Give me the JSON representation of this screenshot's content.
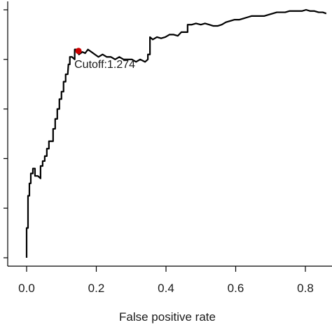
{
  "chart_data": {
    "type": "line",
    "title": "",
    "xlabel": "False positive rate",
    "ylabel": "",
    "xlim": [
      0,
      0.86
    ],
    "ylim": [
      0,
      1
    ],
    "grid": false,
    "x_ticks": [
      0.0,
      0.2,
      0.4,
      0.6,
      0.8
    ],
    "x_tick_labels": [
      "0.0",
      "0.2",
      "0.4",
      "0.6",
      "0.8"
    ],
    "y_ticks": [
      0.0,
      0.2,
      0.4,
      0.6,
      0.8,
      1.0
    ],
    "y_tick_labels": [
      "",
      "",
      "",
      "",
      "",
      ""
    ],
    "series": [
      {
        "color": "#000000",
        "points": [
          [
            0.0,
            0.0
          ],
          [
            0.0,
            0.12
          ],
          [
            0.004,
            0.12
          ],
          [
            0.004,
            0.25
          ],
          [
            0.008,
            0.25
          ],
          [
            0.008,
            0.3
          ],
          [
            0.012,
            0.3
          ],
          [
            0.012,
            0.34
          ],
          [
            0.018,
            0.34
          ],
          [
            0.018,
            0.36
          ],
          [
            0.024,
            0.36
          ],
          [
            0.024,
            0.33
          ],
          [
            0.032,
            0.33
          ],
          [
            0.04,
            0.32
          ],
          [
            0.04,
            0.37
          ],
          [
            0.046,
            0.37
          ],
          [
            0.046,
            0.39
          ],
          [
            0.052,
            0.39
          ],
          [
            0.052,
            0.41
          ],
          [
            0.058,
            0.41
          ],
          [
            0.058,
            0.44
          ],
          [
            0.064,
            0.44
          ],
          [
            0.064,
            0.47
          ],
          [
            0.07,
            0.47
          ],
          [
            0.076,
            0.47
          ],
          [
            0.076,
            0.52
          ],
          [
            0.082,
            0.52
          ],
          [
            0.082,
            0.56
          ],
          [
            0.088,
            0.56
          ],
          [
            0.088,
            0.6
          ],
          [
            0.094,
            0.6
          ],
          [
            0.094,
            0.64
          ],
          [
            0.1,
            0.64
          ],
          [
            0.1,
            0.67
          ],
          [
            0.106,
            0.67
          ],
          [
            0.106,
            0.71
          ],
          [
            0.112,
            0.71
          ],
          [
            0.112,
            0.74
          ],
          [
            0.118,
            0.74
          ],
          [
            0.12,
            0.78
          ],
          [
            0.124,
            0.78
          ],
          [
            0.124,
            0.81
          ],
          [
            0.13,
            0.81
          ],
          [
            0.138,
            0.8
          ],
          [
            0.138,
            0.84
          ],
          [
            0.146,
            0.84
          ],
          [
            0.15,
            0.82
          ],
          [
            0.16,
            0.83
          ],
          [
            0.168,
            0.825
          ],
          [
            0.176,
            0.84
          ],
          [
            0.186,
            0.83
          ],
          [
            0.196,
            0.82
          ],
          [
            0.206,
            0.81
          ],
          [
            0.218,
            0.82
          ],
          [
            0.23,
            0.81
          ],
          [
            0.242,
            0.81
          ],
          [
            0.254,
            0.8
          ],
          [
            0.266,
            0.81
          ],
          [
            0.278,
            0.8
          ],
          [
            0.29,
            0.8
          ],
          [
            0.302,
            0.8
          ],
          [
            0.314,
            0.79
          ],
          [
            0.326,
            0.8
          ],
          [
            0.34,
            0.79
          ],
          [
            0.348,
            0.8
          ],
          [
            0.348,
            0.82
          ],
          [
            0.354,
            0.82
          ],
          [
            0.354,
            0.89
          ],
          [
            0.362,
            0.88
          ],
          [
            0.374,
            0.89
          ],
          [
            0.386,
            0.885
          ],
          [
            0.398,
            0.89
          ],
          [
            0.41,
            0.9
          ],
          [
            0.422,
            0.9
          ],
          [
            0.434,
            0.895
          ],
          [
            0.444,
            0.91
          ],
          [
            0.456,
            0.91
          ],
          [
            0.462,
            0.91
          ],
          [
            0.462,
            0.94
          ],
          [
            0.474,
            0.94
          ],
          [
            0.486,
            0.945
          ],
          [
            0.5,
            0.94
          ],
          [
            0.512,
            0.945
          ],
          [
            0.524,
            0.94
          ],
          [
            0.536,
            0.935
          ],
          [
            0.548,
            0.935
          ],
          [
            0.56,
            0.94
          ],
          [
            0.572,
            0.95
          ],
          [
            0.584,
            0.955
          ],
          [
            0.596,
            0.96
          ],
          [
            0.61,
            0.96
          ],
          [
            0.622,
            0.965
          ],
          [
            0.634,
            0.97
          ],
          [
            0.646,
            0.975
          ],
          [
            0.658,
            0.975
          ],
          [
            0.67,
            0.975
          ],
          [
            0.682,
            0.975
          ],
          [
            0.694,
            0.98
          ],
          [
            0.706,
            0.985
          ],
          [
            0.718,
            0.99
          ],
          [
            0.73,
            0.99
          ],
          [
            0.742,
            0.99
          ],
          [
            0.754,
            0.995
          ],
          [
            0.766,
            0.995
          ],
          [
            0.778,
            0.995
          ],
          [
            0.79,
            0.995
          ],
          [
            0.802,
            1.0
          ],
          [
            0.814,
            0.995
          ],
          [
            0.826,
            0.995
          ],
          [
            0.838,
            0.99
          ],
          [
            0.85,
            0.99
          ],
          [
            0.86,
            0.985
          ]
        ]
      }
    ],
    "annotations": [
      {
        "text": "Cutoff:1.274",
        "x": 0.149,
        "y": 0.834,
        "marker_color": "#cc0000"
      }
    ]
  }
}
